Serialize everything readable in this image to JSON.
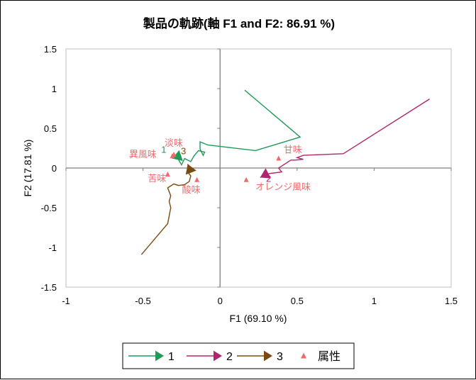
{
  "chart_data": {
    "type": "line",
    "title": "製品の軌跡(軸 F1 and F2: 86.91 %)",
    "xlabel": "F1 (69.10 %)",
    "ylabel": "F2 (17.81 %)",
    "xlim": [
      -1,
      1.5
    ],
    "ylim": [
      -1.5,
      1.5
    ],
    "x_ticks": [
      -1,
      -0.5,
      0,
      0.5,
      1,
      1.5
    ],
    "y_ticks": [
      -1.5,
      -1,
      -0.5,
      0,
      0.5,
      1,
      1.5
    ],
    "x_tick_labels": [
      "-1",
      "-0.5",
      "0",
      "0.5",
      "1",
      "1.5"
    ],
    "y_tick_labels": [
      "-1.5",
      "-1",
      "-0.5",
      "0",
      "0.5",
      "1",
      "1.5"
    ],
    "grid": false,
    "legend_position": "bottom",
    "series": [
      {
        "name": "1",
        "color": "#1f9a57",
        "end_label": "1",
        "points": [
          [
            0.16,
            0.98
          ],
          [
            0.52,
            0.39
          ],
          [
            0.23,
            0.22
          ],
          [
            -0.08,
            0.29
          ],
          [
            -0.13,
            0.33
          ],
          [
            -0.13,
            0.24
          ],
          [
            -0.11,
            0.16
          ],
          [
            -0.1,
            0.2
          ],
          [
            -0.14,
            0.22
          ],
          [
            -0.17,
            0.15
          ],
          [
            -0.19,
            0.08
          ],
          [
            -0.23,
            0.12
          ],
          [
            -0.25,
            0.04
          ],
          [
            -0.28,
            0.14
          ],
          [
            -0.31,
            0.12
          ]
        ]
      },
      {
        "name": "2",
        "color": "#b0266e",
        "end_label": "2",
        "points": [
          [
            1.36,
            0.87
          ],
          [
            0.8,
            0.18
          ],
          [
            0.54,
            0.16
          ],
          [
            0.5,
            0.13
          ],
          [
            0.54,
            0.11
          ],
          [
            0.49,
            0.1
          ],
          [
            0.46,
            0.1
          ],
          [
            0.38,
            0.0
          ],
          [
            0.4,
            -0.05
          ],
          [
            0.32,
            -0.07
          ],
          [
            0.28,
            -0.1
          ],
          [
            0.26,
            -0.12
          ]
        ]
      },
      {
        "name": "3",
        "color": "#7a4a10",
        "end_label": "3",
        "points": [
          [
            -0.51,
            -1.09
          ],
          [
            -0.34,
            -0.7
          ],
          [
            -0.32,
            -0.5
          ],
          [
            -0.33,
            -0.42
          ],
          [
            -0.32,
            -0.35
          ],
          [
            -0.34,
            -0.25
          ],
          [
            -0.3,
            -0.2
          ],
          [
            -0.27,
            -0.22
          ],
          [
            -0.23,
            -0.21
          ],
          [
            -0.2,
            -0.17
          ],
          [
            -0.19,
            -0.1
          ],
          [
            -0.21,
            -0.05
          ],
          [
            -0.2,
            0.0
          ],
          [
            -0.21,
            0.05
          ]
        ]
      }
    ],
    "attributes": {
      "name": "属性",
      "color": "#ef6b6b",
      "points": [
        {
          "label": "淡味",
          "x": -0.3,
          "y": 0.17
        },
        {
          "label": "異風味",
          "x": -0.31,
          "y": 0.15
        },
        {
          "label": "甘味",
          "x": 0.38,
          "y": 0.12
        },
        {
          "label": "苦味",
          "x": -0.34,
          "y": -0.08
        },
        {
          "label": "酸味",
          "x": -0.15,
          "y": -0.15
        },
        {
          "label": "オレンジ風味",
          "x": 0.17,
          "y": -0.15
        }
      ]
    }
  }
}
